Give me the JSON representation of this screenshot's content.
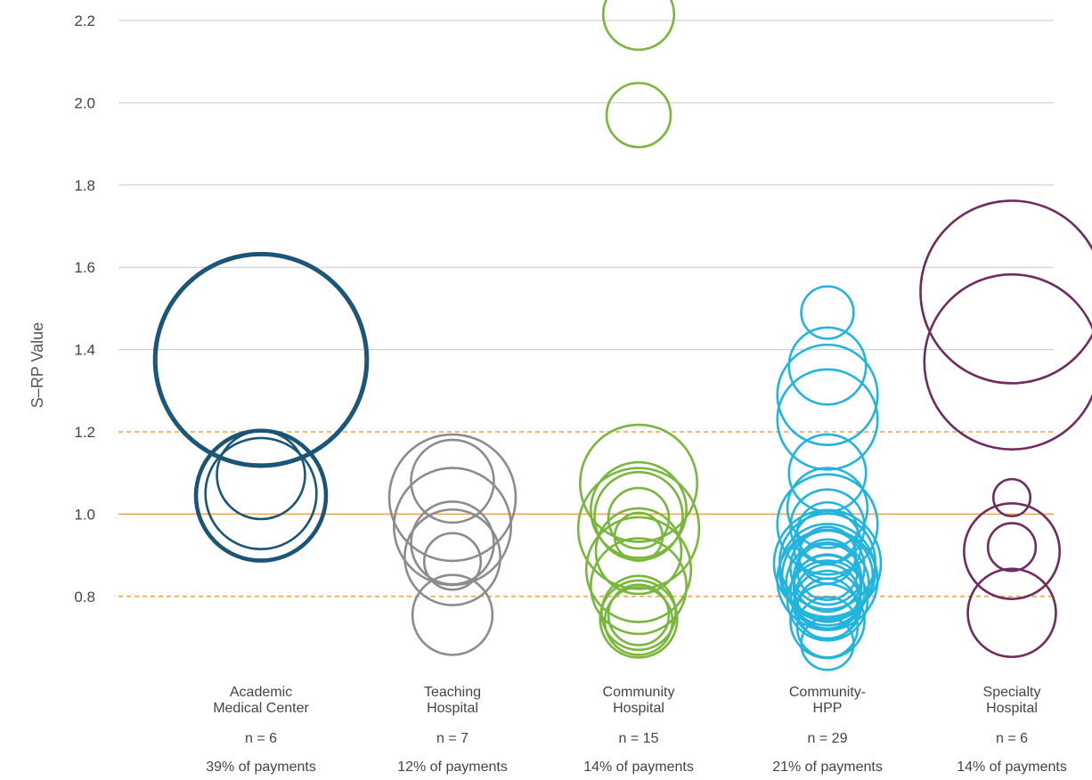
{
  "chart_data": {
    "type": "scatter",
    "subtype": "bubble",
    "title": "",
    "ylabel": "S–RP Value",
    "xlabel": "",
    "ylim": [
      0.66,
      2.25
    ],
    "yticks": [
      "0.8",
      "1.0",
      "1.2",
      "1.4",
      "1.6",
      "1.8",
      "2.0",
      "2.2"
    ],
    "grid": true,
    "reference_lines": [
      {
        "value": 1.0,
        "style": "solid",
        "color": "#f0a040"
      },
      {
        "value": 1.2,
        "style": "dashed",
        "color": "#f0a040"
      },
      {
        "value": 0.8,
        "style": "dashed",
        "color": "#f0a040"
      }
    ],
    "categories": [
      {
        "label_lines": [
          "Academic",
          "Medical Center"
        ],
        "n_label": "n = 6",
        "payments_label": "39% of payments",
        "color": "#1a5577",
        "points": [
          {
            "y": 1.375,
            "size": 1.0
          },
          {
            "y": 1.375,
            "size": 0.96
          },
          {
            "y": 1.045,
            "size": 0.38
          },
          {
            "y": 1.045,
            "size": 0.36
          },
          {
            "y": 1.05,
            "size": 0.27
          },
          {
            "y": 1.095,
            "size": 0.17
          }
        ]
      },
      {
        "label_lines": [
          "Teaching",
          "Hospital"
        ],
        "n_label": "n = 7",
        "payments_label": "12% of payments",
        "color": "#8c8c8c",
        "points": [
          {
            "y": 1.04,
            "size": 0.35
          },
          {
            "y": 0.97,
            "size": 0.3
          },
          {
            "y": 1.08,
            "size": 0.15
          },
          {
            "y": 0.93,
            "size": 0.15
          },
          {
            "y": 0.895,
            "size": 0.2
          },
          {
            "y": 0.885,
            "size": 0.07
          },
          {
            "y": 0.755,
            "size": 0.14
          }
        ]
      },
      {
        "label_lines": [
          "Community",
          "Hospital"
        ],
        "n_label": "n = 15",
        "payments_label": "14% of payments",
        "color": "#78b63c",
        "points": [
          {
            "y": 2.215,
            "size": 0.11
          },
          {
            "y": 1.97,
            "size": 0.09
          },
          {
            "y": 1.075,
            "size": 0.3
          },
          {
            "y": 1.01,
            "size": 0.2
          },
          {
            "y": 0.995,
            "size": 0.17
          },
          {
            "y": 0.965,
            "size": 0.32
          },
          {
            "y": 0.99,
            "size": 0.08
          },
          {
            "y": 0.945,
            "size": 0.05
          },
          {
            "y": 0.91,
            "size": 0.16
          },
          {
            "y": 0.865,
            "size": 0.24
          },
          {
            "y": 0.825,
            "size": 0.2
          },
          {
            "y": 0.76,
            "size": 0.12
          },
          {
            "y": 0.755,
            "size": 0.08
          },
          {
            "y": 0.745,
            "size": 0.13
          },
          {
            "y": 0.74,
            "size": 0.1
          }
        ]
      },
      {
        "label_lines": [
          "Community-",
          "HPP"
        ],
        "n_label": "n = 29",
        "payments_label": "21% of payments",
        "color": "#22b4dc",
        "points": [
          {
            "y": 1.49,
            "size": 0.06
          },
          {
            "y": 1.36,
            "size": 0.13
          },
          {
            "y": 1.29,
            "size": 0.22
          },
          {
            "y": 1.23,
            "size": 0.22
          },
          {
            "y": 1.1,
            "size": 0.13
          },
          {
            "y": 1.015,
            "size": 0.14
          },
          {
            "y": 0.975,
            "size": 0.22
          },
          {
            "y": 0.97,
            "size": 0.12
          },
          {
            "y": 0.955,
            "size": 0.08
          },
          {
            "y": 0.925,
            "size": 0.1
          },
          {
            "y": 0.9,
            "size": 0.07
          },
          {
            "y": 0.885,
            "size": 0.2
          },
          {
            "y": 0.88,
            "size": 0.25
          },
          {
            "y": 0.87,
            "size": 0.12
          },
          {
            "y": 0.865,
            "size": 0.08
          },
          {
            "y": 0.86,
            "size": 0.2
          },
          {
            "y": 0.85,
            "size": 0.18
          },
          {
            "y": 0.845,
            "size": 0.1
          },
          {
            "y": 0.84,
            "size": 0.22
          },
          {
            "y": 0.83,
            "size": 0.15
          },
          {
            "y": 0.82,
            "size": 0.1
          },
          {
            "y": 0.81,
            "size": 0.12
          },
          {
            "y": 0.8,
            "size": 0.09
          },
          {
            "y": 0.79,
            "size": 0.14
          },
          {
            "y": 0.78,
            "size": 0.1
          },
          {
            "y": 0.77,
            "size": 0.08
          },
          {
            "y": 0.74,
            "size": 0.12
          },
          {
            "y": 0.725,
            "size": 0.08
          },
          {
            "y": 0.685,
            "size": 0.06
          }
        ]
      },
      {
        "label_lines": [
          "Specialty",
          "Hospital"
        ],
        "n_label": "n = 6",
        "payments_label": "14% of payments",
        "color": "#6e2d5e",
        "points": [
          {
            "y": 1.54,
            "size": 0.73
          },
          {
            "y": 1.37,
            "size": 0.67
          },
          {
            "y": 1.04,
            "size": 0.03
          },
          {
            "y": 0.92,
            "size": 0.05
          },
          {
            "y": 0.91,
            "size": 0.2
          },
          {
            "y": 0.76,
            "size": 0.17
          }
        ]
      }
    ]
  }
}
